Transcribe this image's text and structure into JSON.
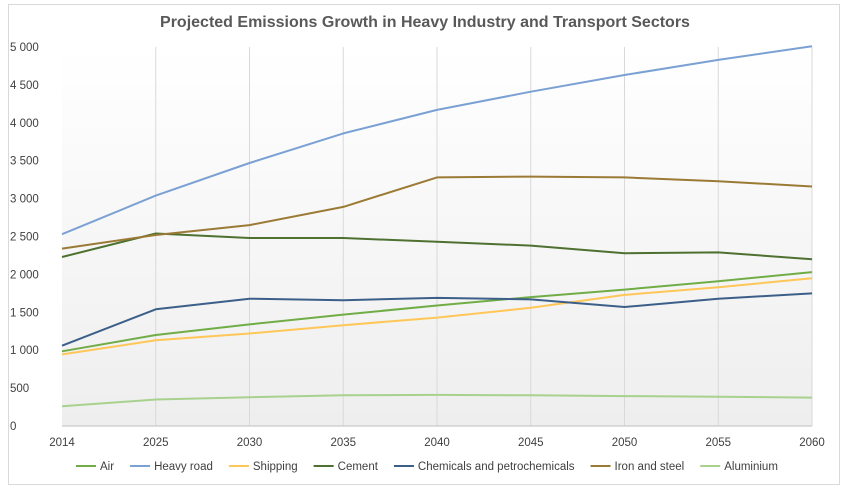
{
  "chart_data": {
    "type": "line",
    "title": "Projected Emissions Growth in Heavy Industry and Transport Sectors",
    "xlabel": "",
    "ylabel": "",
    "x": [
      "2014",
      "2025",
      "2030",
      "2035",
      "2040",
      "2045",
      "2050",
      "2055",
      "2060"
    ],
    "ylim": [
      0,
      5000
    ],
    "yticks": [
      0,
      500,
      1000,
      1500,
      2000,
      2500,
      3000,
      3500,
      4000,
      4500,
      5000
    ],
    "ytick_labels": [
      "0",
      "500",
      "1 000",
      "1 500",
      "2 000",
      "2 500",
      "3 000",
      "3 500",
      "4 000",
      "4 500",
      "5 000"
    ],
    "grid": "vertical",
    "legend": "bottom",
    "series": [
      {
        "name": "Air",
        "color": "#70ad47",
        "values": [
          985,
          1200,
          1340,
          1470,
          1590,
          1700,
          1800,
          1910,
          2030
        ]
      },
      {
        "name": "Heavy road",
        "color": "#7ba1d4",
        "values": [
          2530,
          3040,
          3470,
          3860,
          4170,
          4410,
          4630,
          4830,
          5010
        ]
      },
      {
        "name": "Shipping",
        "color": "#ffc658",
        "values": [
          945,
          1130,
          1220,
          1330,
          1430,
          1560,
          1730,
          1830,
          1950
        ]
      },
      {
        "name": "Cement",
        "color": "#4e7131",
        "values": [
          2230,
          2540,
          2480,
          2480,
          2430,
          2380,
          2280,
          2290,
          2200
        ]
      },
      {
        "name": "Chemicals and petrochemicals",
        "color": "#3c5f8a",
        "values": [
          1060,
          1540,
          1680,
          1660,
          1690,
          1670,
          1570,
          1680,
          1750
        ]
      },
      {
        "name": "Iron and steel",
        "color": "#9b7a35",
        "values": [
          2340,
          2520,
          2650,
          2890,
          3280,
          3290,
          3280,
          3230,
          3160
        ]
      },
      {
        "name": "Aluminium",
        "color": "#a9d18e",
        "values": [
          260,
          350,
          380,
          405,
          410,
          405,
          395,
          385,
          375
        ]
      }
    ]
  }
}
